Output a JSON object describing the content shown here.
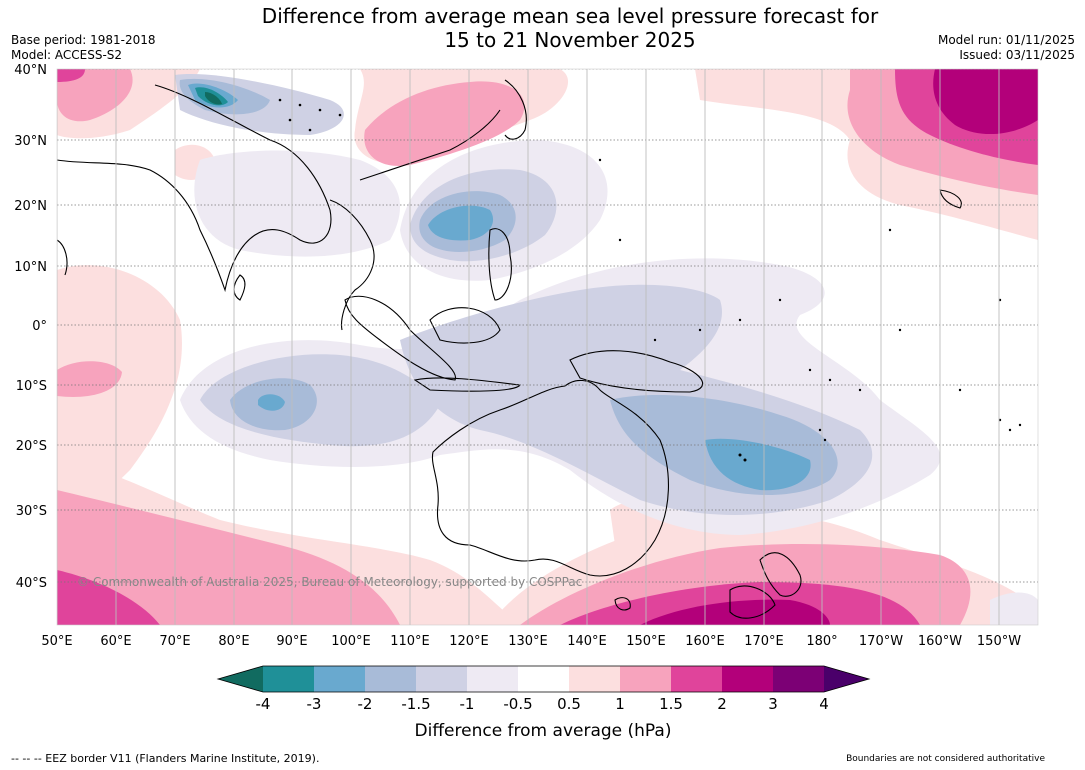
{
  "title_line1": "Difference from average mean sea level pressure forecast for",
  "title_line2": "15 to 21 November 2025",
  "base_period": "Base period: 1981-2018",
  "model": "Model: ACCESS-S2",
  "model_run": "Model run: 01/11/2025",
  "issued": "Issued: 03/11/2025",
  "copyright": "© Commonwealth of Australia 2025, Bureau of Meteorology, supported by COSPPac",
  "lat_labels": [
    "40°N",
    "30°N",
    "20°N",
    "10°N",
    "0°",
    "10°S",
    "20°S",
    "30°S",
    "40°S"
  ],
  "lon_labels": [
    "50°E",
    "60°E",
    "70°E",
    "80°E",
    "90°E",
    "100°E",
    "110°E",
    "120°E",
    "130°E",
    "140°E",
    "150°E",
    "160°E",
    "170°E",
    "180°",
    "170°W",
    "160°W",
    "150°W"
  ],
  "colorbar": {
    "title": "Difference from average (hPa)",
    "tick_labels": [
      "-4",
      "-3",
      "-2",
      "-1.5",
      "-1",
      "-0.5",
      "0.5",
      "1",
      "1.5",
      "2",
      "3",
      "4"
    ],
    "colors": [
      "#116b60",
      "#1f9098",
      "#69a9cf",
      "#a8bbd8",
      "#cfd1e4",
      "#eeeaf3",
      "#ffffff",
      "#fcdfdf",
      "#f7a3bd",
      "#e0449b",
      "#b3007a",
      "#7c0075",
      "#4a006a"
    ]
  },
  "footer_left": "--  --  -- EEZ border V11 (Flanders Marine Institute, 2019).",
  "footer_right": "Boundaries are not considered authoritative"
}
